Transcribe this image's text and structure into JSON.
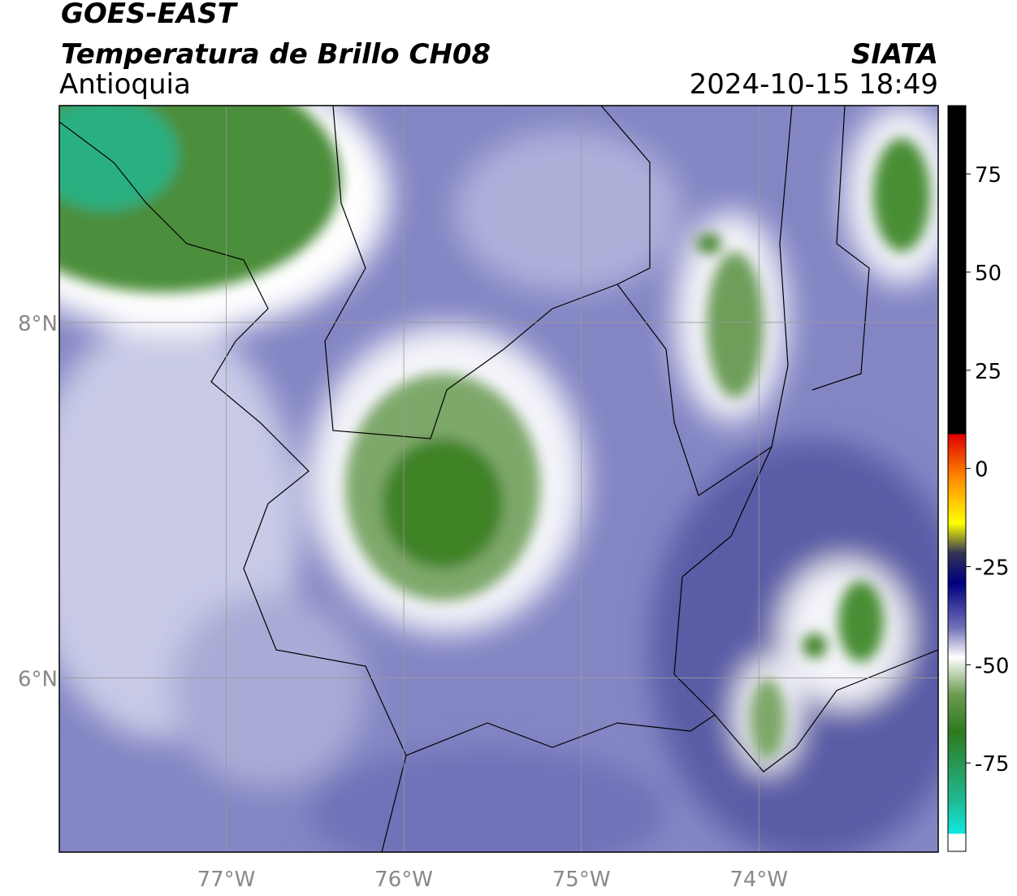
{
  "header": {
    "satellite": "GOES-EAST",
    "product": "Temperatura de Brillo CH08",
    "region": "Antioquia",
    "source": "SIATA",
    "datetime": "2024-10-15 18:49"
  },
  "map": {
    "lonlim": [
      -77.94,
      -72.99
    ],
    "latlim": [
      5.02,
      9.22
    ],
    "lon_ticks": [
      {
        "value": -77,
        "label": "77°W"
      },
      {
        "value": -76,
        "label": "76°W"
      },
      {
        "value": -75,
        "label": "75°W"
      },
      {
        "value": -74,
        "label": "74°W"
      }
    ],
    "lat_ticks": [
      {
        "value": 8,
        "label": "8°N"
      },
      {
        "value": 6,
        "label": "6°N"
      }
    ],
    "grid": true
  },
  "colorbar": {
    "lim": [
      -97.5,
      92.4
    ],
    "ticks": [
      75,
      50,
      25,
      0,
      -25,
      -50,
      -75
    ]
  }
}
